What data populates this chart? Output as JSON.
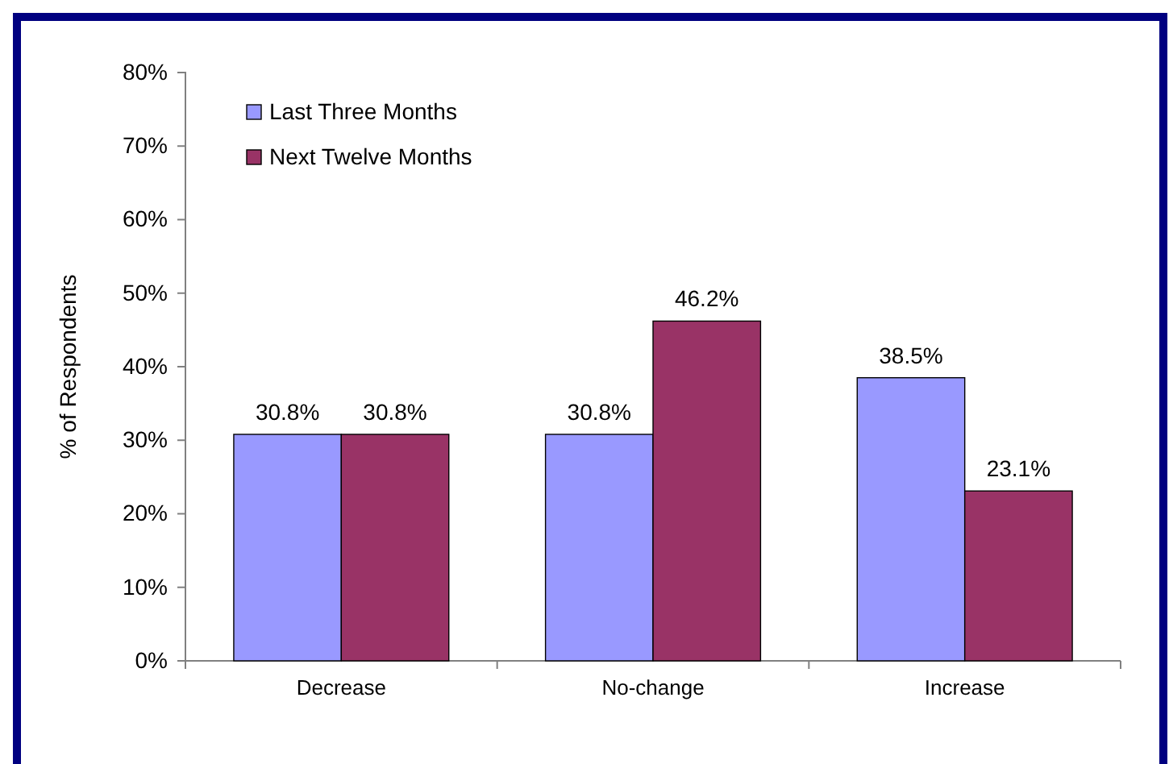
{
  "chart_data": {
    "type": "bar",
    "ylabel": "% of Respondents",
    "categories": [
      "Decrease",
      "No-change",
      "Increase"
    ],
    "series": [
      {
        "name": "Last Three Months",
        "color": "#9999ff",
        "values": [
          30.8,
          30.8,
          38.5
        ]
      },
      {
        "name": "Next Twelve Months",
        "color": "#993366",
        "values": [
          30.8,
          46.2,
          23.1
        ]
      }
    ],
    "ylim": [
      0,
      80
    ],
    "yticks": [
      {
        "value": 0,
        "label": "0%"
      },
      {
        "value": 10,
        "label": "10%"
      },
      {
        "value": 20,
        "label": "20%"
      },
      {
        "value": 30,
        "label": "30%"
      },
      {
        "value": 40,
        "label": "40%"
      },
      {
        "value": 50,
        "label": "50%"
      },
      {
        "value": 60,
        "label": "60%"
      },
      {
        "value": 70,
        "label": "70%"
      },
      {
        "value": 80,
        "label": "80%"
      }
    ],
    "value_labels": [
      [
        "30.8%",
        "30.8%",
        "38.5%"
      ],
      [
        "30.8%",
        "46.2%",
        "23.1%"
      ]
    ],
    "legend": "top left",
    "grid": false
  }
}
